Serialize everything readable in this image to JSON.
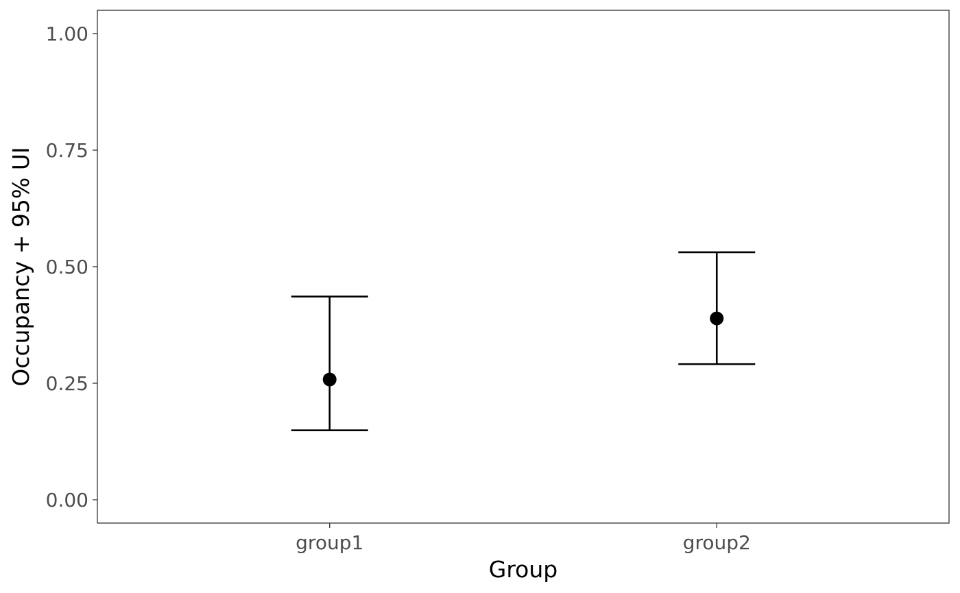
{
  "chart_data": {
    "type": "scatter",
    "title": "",
    "xlabel": "Group",
    "ylabel": "Occupancy + 95% UI",
    "ylim": [
      -0.05,
      1.05
    ],
    "y_ticks": [
      "0.00",
      "0.25",
      "0.50",
      "0.75",
      "1.00"
    ],
    "categories": [
      "group1",
      "group2"
    ],
    "series": [
      {
        "points": [
          {
            "category": "group1",
            "estimate": 0.258,
            "lower": 0.149,
            "upper": 0.436
          },
          {
            "category": "group2",
            "estimate": 0.389,
            "lower": 0.291,
            "upper": 0.531
          }
        ]
      }
    ],
    "grid": false,
    "legend": "none",
    "colors": {
      "marks": "#000000",
      "frame": "#333333",
      "tick_label": "#4d4d4d"
    }
  }
}
